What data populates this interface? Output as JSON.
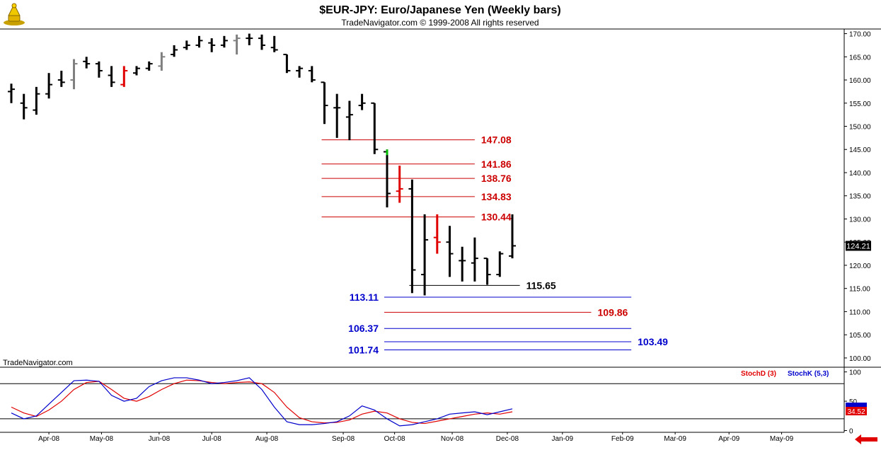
{
  "header": {
    "title": "$EUR-JPY:  Euro/Japanese Yen  (Weekly bars)",
    "copyright": "TradeNavigator.com © 1999-2008 All rights reserved"
  },
  "watermark": "TradeNavigator.com",
  "indicator": {
    "stochd_label": "StochD (3)",
    "stochk_label": "StochK (5,3)",
    "current_value": "34.52"
  },
  "current_price_label": "124.21",
  "colors": {
    "bar_black": "#000000",
    "bar_gray": "#808080",
    "bar_red": "#e00000",
    "bar_green": "#00c000",
    "level_red": "#cc0000",
    "level_blue": "#0000cc",
    "level_black": "#000000",
    "stochd": "#e00000",
    "stochk": "#0000cc",
    "nav_arrow": "#e00000"
  },
  "chart_data": [
    {
      "type": "ohlc",
      "title": "$EUR-JPY:  Euro/Japanese Yen  (Weekly bars)",
      "ylim": [
        98,
        171
      ],
      "yticks": [
        "170.00",
        "165.00",
        "160.00",
        "155.00",
        "150.00",
        "145.00",
        "140.00",
        "135.00",
        "130.00",
        "125.00",
        "120.00",
        "115.00",
        "110.00",
        "105.00",
        "100.00"
      ],
      "ytick_values": [
        170,
        165,
        160,
        155,
        150,
        145,
        140,
        135,
        130,
        125,
        120,
        115,
        110,
        105,
        100
      ],
      "xlabels": [
        {
          "label": "Apr-08",
          "w": 3
        },
        {
          "label": "May-08",
          "w": 7.2
        },
        {
          "label": "Jun-08",
          "w": 11.8
        },
        {
          "label": "Jul-08",
          "w": 16
        },
        {
          "label": "Aug-08",
          "w": 20.4
        },
        {
          "label": "Sep-08",
          "w": 26.5
        },
        {
          "label": "Oct-08",
          "w": 30.6
        },
        {
          "label": "Nov-08",
          "w": 35.2
        },
        {
          "label": "Dec-08",
          "w": 39.6
        },
        {
          "label": "Jan-09",
          "w": 44
        },
        {
          "label": "Feb-09",
          "w": 48.8
        },
        {
          "label": "Mar-09",
          "w": 53
        },
        {
          "label": "Apr-09",
          "w": 57.3
        },
        {
          "label": "May-09",
          "w": 61.5
        }
      ],
      "bars": [
        {
          "w": 0,
          "o": 157.5,
          "h": 159.2,
          "l": 155.0,
          "c": 158.0,
          "color": "black"
        },
        {
          "w": 1,
          "o": 155.0,
          "h": 157.0,
          "l": 151.5,
          "c": 154.0,
          "color": "black"
        },
        {
          "w": 2,
          "o": 153.5,
          "h": 158.5,
          "l": 152.5,
          "c": 157.0,
          "color": "black"
        },
        {
          "w": 3,
          "o": 157.0,
          "h": 161.5,
          "l": 156.0,
          "c": 159.0,
          "color": "black"
        },
        {
          "w": 4,
          "o": 160.0,
          "h": 162.0,
          "l": 158.5,
          "c": 159.5,
          "color": "black"
        },
        {
          "w": 5,
          "o": 160.0,
          "h": 164.5,
          "l": 158.0,
          "c": 163.5,
          "color": "gray"
        },
        {
          "w": 6,
          "o": 164.0,
          "h": 165.0,
          "l": 162.5,
          "c": 163.5,
          "color": "black"
        },
        {
          "w": 7,
          "o": 163.5,
          "h": 164.0,
          "l": 160.5,
          "c": 162.0,
          "color": "black"
        },
        {
          "w": 8,
          "o": 161.0,
          "h": 163.0,
          "l": 158.5,
          "c": 159.5,
          "color": "black"
        },
        {
          "w": 9,
          "o": 159.0,
          "h": 163.0,
          "l": 158.5,
          "c": 162.0,
          "color": "red"
        },
        {
          "w": 10,
          "o": 161.5,
          "h": 163.0,
          "l": 161.0,
          "c": 162.5,
          "color": "black"
        },
        {
          "w": 11,
          "o": 162.5,
          "h": 164.0,
          "l": 162.0,
          "c": 163.5,
          "color": "black"
        },
        {
          "w": 12,
          "o": 163.0,
          "h": 166.0,
          "l": 162.0,
          "c": 165.0,
          "color": "gray"
        },
        {
          "w": 13,
          "o": 165.5,
          "h": 167.5,
          "l": 165.0,
          "c": 166.5,
          "color": "black"
        },
        {
          "w": 14,
          "o": 167.0,
          "h": 168.5,
          "l": 166.5,
          "c": 167.5,
          "color": "black"
        },
        {
          "w": 15,
          "o": 167.5,
          "h": 169.5,
          "l": 167.0,
          "c": 168.5,
          "color": "black"
        },
        {
          "w": 16,
          "o": 168.0,
          "h": 169.0,
          "l": 166.0,
          "c": 167.5,
          "color": "black"
        },
        {
          "w": 17,
          "o": 167.5,
          "h": 169.5,
          "l": 167.0,
          "c": 168.5,
          "color": "black"
        },
        {
          "w": 18,
          "o": 168.5,
          "h": 169.8,
          "l": 165.5,
          "c": 169.0,
          "color": "gray"
        },
        {
          "w": 19,
          "o": 169.0,
          "h": 170.0,
          "l": 167.5,
          "c": 169.0,
          "color": "black"
        },
        {
          "w": 20,
          "o": 169.0,
          "h": 169.8,
          "l": 166.5,
          "c": 167.5,
          "color": "black"
        },
        {
          "w": 21,
          "o": 167.0,
          "h": 169.5,
          "l": 166.0,
          "c": 166.5,
          "color": "black"
        },
        {
          "w": 22,
          "o": 165.5,
          "h": 165.5,
          "l": 161.5,
          "c": 162.0,
          "color": "black"
        },
        {
          "w": 23,
          "o": 162.0,
          "h": 163.0,
          "l": 160.5,
          "c": 162.5,
          "color": "black"
        },
        {
          "w": 24,
          "o": 162.0,
          "h": 163.0,
          "l": 159.5,
          "c": 160.0,
          "color": "black"
        },
        {
          "w": 25,
          "o": 159.5,
          "h": 159.5,
          "l": 150.5,
          "c": 154.5,
          "color": "black"
        },
        {
          "w": 26,
          "o": 154.0,
          "h": 157.0,
          "l": 147.5,
          "c": 154.0,
          "color": "black"
        },
        {
          "w": 27,
          "o": 152.0,
          "h": 155.5,
          "l": 147.0,
          "c": 152.5,
          "color": "black"
        },
        {
          "w": 28,
          "o": 154.5,
          "h": 157.0,
          "l": 153.5,
          "c": 155.0,
          "color": "black"
        },
        {
          "w": 29,
          "o": 155.0,
          "h": 155.0,
          "l": 144.0,
          "c": 145.0,
          "color": "black"
        },
        {
          "w": 30,
          "o": 144.5,
          "h": 145.0,
          "l": 132.5,
          "c": 135.5,
          "color": "black",
          "tick": "green"
        },
        {
          "w": 31,
          "o": 136.0,
          "h": 141.5,
          "l": 133.5,
          "c": 136.5,
          "color": "red"
        },
        {
          "w": 32,
          "o": 136.5,
          "h": 138.5,
          "l": 114.0,
          "c": 119.0,
          "color": "black"
        },
        {
          "w": 33,
          "o": 118.0,
          "h": 131.0,
          "l": 113.5,
          "c": 125.5,
          "color": "black"
        },
        {
          "w": 34,
          "o": 126.0,
          "h": 131.0,
          "l": 122.5,
          "c": 125.0,
          "color": "red"
        },
        {
          "w": 35,
          "o": 125.0,
          "h": 128.5,
          "l": 117.5,
          "c": 122.5,
          "color": "black"
        },
        {
          "w": 36,
          "o": 121.0,
          "h": 124.0,
          "l": 116.5,
          "c": 121.0,
          "color": "black"
        },
        {
          "w": 37,
          "o": 120.5,
          "h": 126.0,
          "l": 116.5,
          "c": 121.5,
          "color": "black"
        },
        {
          "w": 38,
          "o": 121.5,
          "h": 121.5,
          "l": 115.8,
          "c": 118.0,
          "color": "black"
        },
        {
          "w": 39,
          "o": 118.0,
          "h": 123.0,
          "l": 117.5,
          "c": 122.5,
          "color": "black"
        },
        {
          "w": 40,
          "o": 122.0,
          "h": 131.0,
          "l": 121.5,
          "c": 124.2,
          "color": "black"
        }
      ],
      "levels": [
        {
          "value": 147.08,
          "label": "147.08",
          "color": "red",
          "w_start": 25,
          "w_end": 37,
          "label_side": "right"
        },
        {
          "value": 141.86,
          "label": "141.86",
          "color": "red",
          "w_start": 25,
          "w_end": 37,
          "label_side": "right"
        },
        {
          "value": 138.76,
          "label": "138.76",
          "color": "red",
          "w_start": 25,
          "w_end": 37,
          "label_side": "right"
        },
        {
          "value": 134.83,
          "label": "134.83",
          "color": "red",
          "w_start": 25,
          "w_end": 37,
          "label_side": "right"
        },
        {
          "value": 130.44,
          "label": "130.44",
          "color": "red",
          "w_start": 25,
          "w_end": 37,
          "label_side": "right"
        },
        {
          "value": 115.65,
          "label": "115.65",
          "color": "black",
          "w_start": 32,
          "w_end": 40.6,
          "label_side": "right"
        },
        {
          "value": 113.11,
          "label": "113.11",
          "color": "blue",
          "w_start": 30,
          "w_end": 49.5,
          "label_side": "left"
        },
        {
          "value": 109.86,
          "label": "109.86",
          "color": "red",
          "w_start": 30,
          "w_end": 46.3,
          "label_side": "right"
        },
        {
          "value": 106.37,
          "label": "106.37",
          "color": "blue",
          "w_start": 30,
          "w_end": 49.5,
          "label_side": "left"
        },
        {
          "value": 103.49,
          "label": "103.49",
          "color": "blue",
          "w_start": 30,
          "w_end": 49.5,
          "label_side": "right"
        },
        {
          "value": 101.74,
          "label": "101.74",
          "color": "blue",
          "w_start": 30,
          "w_end": 49.5,
          "label_side": "left"
        }
      ]
    },
    {
      "type": "line",
      "title": "",
      "ylim": [
        -3,
        108
      ],
      "yticks": [
        "100",
        "50",
        "0"
      ],
      "ytick_values": [
        100,
        50,
        0
      ],
      "hlines": [
        80,
        20
      ],
      "series": [
        {
          "name": "StochD (3)",
          "color": "red",
          "points": [
            [
              0,
              40
            ],
            [
              1,
              30
            ],
            [
              2,
              24
            ],
            [
              3,
              35
            ],
            [
              4,
              50
            ],
            [
              5,
              70
            ],
            [
              6,
              82
            ],
            [
              7,
              84
            ],
            [
              8,
              70
            ],
            [
              9,
              55
            ],
            [
              10,
              50
            ],
            [
              11,
              58
            ],
            [
              12,
              70
            ],
            [
              13,
              80
            ],
            [
              14,
              86
            ],
            [
              15,
              85
            ],
            [
              16,
              82
            ],
            [
              17,
              80
            ],
            [
              18,
              82
            ],
            [
              19,
              83
            ],
            [
              20,
              80
            ],
            [
              21,
              65
            ],
            [
              22,
              40
            ],
            [
              23,
              22
            ],
            [
              24,
              15
            ],
            [
              25,
              13
            ],
            [
              26,
              14
            ],
            [
              27,
              18
            ],
            [
              28,
              28
            ],
            [
              29,
              33
            ],
            [
              30,
              30
            ],
            [
              31,
              20
            ],
            [
              32,
              14
            ],
            [
              33,
              12
            ],
            [
              34,
              16
            ],
            [
              35,
              20
            ],
            [
              36,
              24
            ],
            [
              37,
              28
            ],
            [
              38,
              30
            ],
            [
              39,
              28
            ],
            [
              40,
              32
            ]
          ]
        },
        {
          "name": "StochK (5,3)",
          "color": "blue",
          "points": [
            [
              0,
              30
            ],
            [
              1,
              20
            ],
            [
              2,
              25
            ],
            [
              3,
              45
            ],
            [
              4,
              65
            ],
            [
              5,
              85
            ],
            [
              6,
              86
            ],
            [
              7,
              84
            ],
            [
              8,
              60
            ],
            [
              9,
              50
            ],
            [
              10,
              55
            ],
            [
              11,
              75
            ],
            [
              12,
              85
            ],
            [
              13,
              90
            ],
            [
              14,
              90
            ],
            [
              15,
              86
            ],
            [
              16,
              80
            ],
            [
              17,
              82
            ],
            [
              18,
              85
            ],
            [
              19,
              90
            ],
            [
              20,
              70
            ],
            [
              21,
              40
            ],
            [
              22,
              15
            ],
            [
              23,
              10
            ],
            [
              24,
              10
            ],
            [
              25,
              12
            ],
            [
              26,
              15
            ],
            [
              27,
              25
            ],
            [
              28,
              42
            ],
            [
              29,
              35
            ],
            [
              30,
              20
            ],
            [
              31,
              8
            ],
            [
              32,
              10
            ],
            [
              33,
              15
            ],
            [
              34,
              20
            ],
            [
              35,
              28
            ],
            [
              36,
              30
            ],
            [
              37,
              32
            ],
            [
              38,
              27
            ],
            [
              39,
              32
            ],
            [
              40,
              37
            ]
          ]
        }
      ]
    }
  ]
}
